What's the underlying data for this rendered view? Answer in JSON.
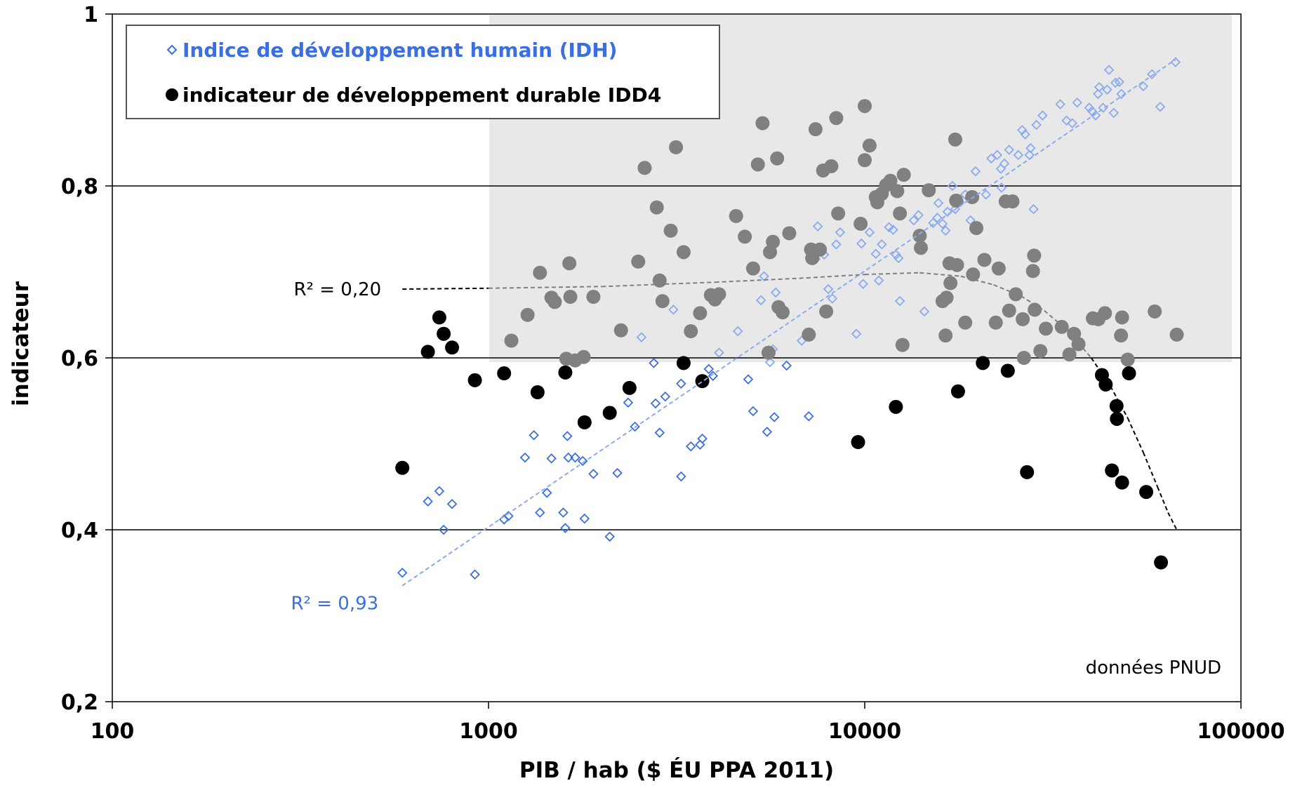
{
  "chart_data": {
    "type": "scatter",
    "xscale": "log",
    "xlim": [
      100,
      100000
    ],
    "ylim": [
      0.2,
      1.0
    ],
    "xticks": [
      "100",
      "1000",
      "10000",
      "100000"
    ],
    "yticks": [
      "0,2",
      "0,4",
      "0,6",
      "0,8",
      "1"
    ],
    "xlabel": "PIB / hab ($ ÉU PPA 2011)",
    "ylabel": "indicateur",
    "grid": "horizontal",
    "legend_position": "top-left",
    "highlight_region": {
      "x": [
        1000,
        100000
      ],
      "y": [
        0.595,
        1.0
      ],
      "color": "#e8e8e8"
    },
    "source_note": "données PNUD",
    "colors": {
      "hdi": "#3b6fe0",
      "hdi_light": "#8aaaf0",
      "sdi": "#000000",
      "sdi_shaded": "#808080"
    },
    "series": [
      {
        "name": "Indice de développement humain (IDH)",
        "marker": "diamond-open",
        "color": "#3b6fe0",
        "points": [
          [
            590,
            0.35
          ],
          [
            690,
            0.433
          ],
          [
            740,
            0.445
          ],
          [
            760,
            0.4
          ],
          [
            800,
            0.43
          ],
          [
            920,
            0.348
          ],
          [
            1100,
            0.412
          ],
          [
            1130,
            0.416
          ],
          [
            1250,
            0.484
          ],
          [
            1320,
            0.51
          ],
          [
            1370,
            0.42
          ],
          [
            1430,
            0.443
          ],
          [
            1470,
            0.483
          ],
          [
            1580,
            0.42
          ],
          [
            1600,
            0.402
          ],
          [
            1620,
            0.509
          ],
          [
            1630,
            0.484
          ],
          [
            1700,
            0.484
          ],
          [
            1780,
            0.48
          ],
          [
            1800,
            0.413
          ],
          [
            1900,
            0.465
          ],
          [
            2100,
            0.392
          ],
          [
            2200,
            0.466
          ],
          [
            2350,
            0.548
          ],
          [
            2450,
            0.52
          ],
          [
            2550,
            0.624
          ],
          [
            2750,
            0.594
          ],
          [
            2780,
            0.547
          ],
          [
            2850,
            0.513
          ],
          [
            2950,
            0.555
          ],
          [
            3100,
            0.656
          ],
          [
            3250,
            0.57
          ],
          [
            3250,
            0.462
          ],
          [
            3450,
            0.497
          ],
          [
            3650,
            0.499
          ],
          [
            3700,
            0.506
          ],
          [
            3850,
            0.587
          ],
          [
            3950,
            0.579
          ],
          [
            4100,
            0.606
          ],
          [
            4600,
            0.631
          ],
          [
            4900,
            0.575
          ],
          [
            5050,
            0.538
          ],
          [
            5300,
            0.667
          ],
          [
            5400,
            0.695
          ],
          [
            5500,
            0.514
          ],
          [
            5600,
            0.595
          ],
          [
            5700,
            0.61
          ],
          [
            5750,
            0.531
          ],
          [
            5800,
            0.676
          ],
          [
            5950,
            0.661
          ],
          [
            6200,
            0.591
          ],
          [
            6800,
            0.62
          ],
          [
            7100,
            0.532
          ],
          [
            7400,
            0.715
          ],
          [
            7500,
            0.753
          ],
          [
            7800,
            0.72
          ],
          [
            8000,
            0.68
          ],
          [
            8200,
            0.669
          ],
          [
            8400,
            0.732
          ],
          [
            8600,
            0.746
          ],
          [
            9500,
            0.628
          ],
          [
            9800,
            0.733
          ],
          [
            9900,
            0.686
          ],
          [
            10300,
            0.746
          ],
          [
            10700,
            0.721
          ],
          [
            10900,
            0.69
          ],
          [
            11100,
            0.732
          ],
          [
            11600,
            0.752
          ],
          [
            11900,
            0.749
          ],
          [
            12100,
            0.72
          ],
          [
            12300,
            0.716
          ],
          [
            12400,
            0.666
          ],
          [
            13500,
            0.76
          ],
          [
            13900,
            0.766
          ],
          [
            14400,
            0.654
          ],
          [
            15200,
            0.757
          ],
          [
            15600,
            0.763
          ],
          [
            15700,
            0.78
          ],
          [
            16100,
            0.756
          ],
          [
            16400,
            0.748
          ],
          [
            16600,
            0.77
          ],
          [
            17100,
            0.8
          ],
          [
            17400,
            0.773
          ],
          [
            17900,
            0.781
          ],
          [
            18500,
            0.79
          ],
          [
            19100,
            0.76
          ],
          [
            19700,
            0.817
          ],
          [
            21000,
            0.79
          ],
          [
            21700,
            0.832
          ],
          [
            22500,
            0.836
          ],
          [
            23000,
            0.82
          ],
          [
            23100,
            0.798
          ],
          [
            23500,
            0.826
          ],
          [
            24200,
            0.842
          ],
          [
            25600,
            0.836
          ],
          [
            26200,
            0.865
          ],
          [
            26700,
            0.86
          ],
          [
            27400,
            0.836
          ],
          [
            27600,
            0.844
          ],
          [
            28100,
            0.773
          ],
          [
            28600,
            0.871
          ],
          [
            29700,
            0.882
          ],
          [
            33100,
            0.895
          ],
          [
            34400,
            0.876
          ],
          [
            35600,
            0.873
          ],
          [
            36700,
            0.897
          ],
          [
            39500,
            0.891
          ],
          [
            40200,
            0.887
          ],
          [
            41100,
            0.882
          ],
          [
            41700,
            0.907
          ],
          [
            42000,
            0.915
          ],
          [
            43000,
            0.891
          ],
          [
            44100,
            0.912
          ],
          [
            44600,
            0.935
          ],
          [
            45900,
            0.885
          ],
          [
            46400,
            0.92
          ],
          [
            47500,
            0.921
          ],
          [
            48100,
            0.907
          ],
          [
            55000,
            0.916
          ],
          [
            58000,
            0.93
          ],
          [
            61000,
            0.892
          ],
          [
            67000,
            0.944
          ]
        ]
      },
      {
        "name": "indicateur de développement durable IDD4",
        "marker": "circle-filled",
        "color": "#000000",
        "points": [
          [
            590,
            0.472
          ],
          [
            690,
            0.607
          ],
          [
            740,
            0.647
          ],
          [
            760,
            0.628
          ],
          [
            800,
            0.612
          ],
          [
            920,
            0.574
          ],
          [
            1100,
            0.582
          ],
          [
            1150,
            0.62
          ],
          [
            1270,
            0.65
          ],
          [
            1350,
            0.56
          ],
          [
            1370,
            0.699
          ],
          [
            1470,
            0.67
          ],
          [
            1500,
            0.665
          ],
          [
            1600,
            0.583
          ],
          [
            1610,
            0.599
          ],
          [
            1640,
            0.71
          ],
          [
            1650,
            0.671
          ],
          [
            1700,
            0.597
          ],
          [
            1790,
            0.601
          ],
          [
            1800,
            0.525
          ],
          [
            1900,
            0.671
          ],
          [
            2100,
            0.536
          ],
          [
            2250,
            0.632
          ],
          [
            2370,
            0.565
          ],
          [
            2500,
            0.712
          ],
          [
            2600,
            0.821
          ],
          [
            2800,
            0.775
          ],
          [
            2850,
            0.69
          ],
          [
            2900,
            0.666
          ],
          [
            3050,
            0.748
          ],
          [
            3150,
            0.845
          ],
          [
            3300,
            0.594
          ],
          [
            3300,
            0.723
          ],
          [
            3450,
            0.631
          ],
          [
            3650,
            0.652
          ],
          [
            3700,
            0.573
          ],
          [
            3900,
            0.673
          ],
          [
            4000,
            0.668
          ],
          [
            4100,
            0.674
          ],
          [
            4550,
            0.765
          ],
          [
            4800,
            0.741
          ],
          [
            5050,
            0.704
          ],
          [
            5200,
            0.825
          ],
          [
            5350,
            0.873
          ],
          [
            5550,
            0.606
          ],
          [
            5600,
            0.723
          ],
          [
            5700,
            0.735
          ],
          [
            5850,
            0.832
          ],
          [
            5900,
            0.659
          ],
          [
            6050,
            0.653
          ],
          [
            6300,
            0.745
          ],
          [
            7100,
            0.627
          ],
          [
            7200,
            0.726
          ],
          [
            7250,
            0.716
          ],
          [
            7400,
            0.866
          ],
          [
            7600,
            0.726
          ],
          [
            7750,
            0.818
          ],
          [
            7900,
            0.654
          ],
          [
            8150,
            0.823
          ],
          [
            8400,
            0.879
          ],
          [
            8500,
            0.768
          ],
          [
            9600,
            0.502
          ],
          [
            9750,
            0.756
          ],
          [
            10000,
            0.893
          ],
          [
            10000,
            0.83
          ],
          [
            10300,
            0.847
          ],
          [
            10700,
            0.787
          ],
          [
            10800,
            0.781
          ],
          [
            11100,
            0.791
          ],
          [
            11400,
            0.801
          ],
          [
            11700,
            0.806
          ],
          [
            12100,
            0.543
          ],
          [
            12200,
            0.794
          ],
          [
            12400,
            0.768
          ],
          [
            12600,
            0.615
          ],
          [
            12700,
            0.813
          ],
          [
            14000,
            0.742
          ],
          [
            14100,
            0.728
          ],
          [
            14800,
            0.795
          ],
          [
            16100,
            0.666
          ],
          [
            16400,
            0.626
          ],
          [
            16500,
            0.67
          ],
          [
            16800,
            0.71
          ],
          [
            16900,
            0.687
          ],
          [
            17400,
            0.854
          ],
          [
            17500,
            0.783
          ],
          [
            17600,
            0.708
          ],
          [
            17700,
            0.561
          ],
          [
            18500,
            0.641
          ],
          [
            19300,
            0.787
          ],
          [
            19400,
            0.697
          ],
          [
            19800,
            0.751
          ],
          [
            20600,
            0.594
          ],
          [
            20800,
            0.714
          ],
          [
            22300,
            0.641
          ],
          [
            22700,
            0.704
          ],
          [
            23700,
            0.782
          ],
          [
            24000,
            0.585
          ],
          [
            24200,
            0.655
          ],
          [
            24700,
            0.782
          ],
          [
            25200,
            0.674
          ],
          [
            26300,
            0.645
          ],
          [
            26500,
            0.6
          ],
          [
            27000,
            0.467
          ],
          [
            28000,
            0.701
          ],
          [
            28200,
            0.719
          ],
          [
            28300,
            0.656
          ],
          [
            29300,
            0.608
          ],
          [
            30300,
            0.634
          ],
          [
            33400,
            0.636
          ],
          [
            35000,
            0.604
          ],
          [
            36000,
            0.628
          ],
          [
            37000,
            0.616
          ],
          [
            40400,
            0.646
          ],
          [
            41800,
            0.645
          ],
          [
            42700,
            0.58
          ],
          [
            43500,
            0.652
          ],
          [
            43700,
            0.569
          ],
          [
            45400,
            0.469
          ],
          [
            46700,
            0.544
          ],
          [
            46800,
            0.529
          ],
          [
            48000,
            0.626
          ],
          [
            48300,
            0.455
          ],
          [
            48300,
            0.647
          ],
          [
            50000,
            0.598
          ],
          [
            50400,
            0.582
          ],
          [
            56000,
            0.444
          ],
          [
            59000,
            0.654
          ],
          [
            61300,
            0.362
          ],
          [
            67500,
            0.627
          ]
        ]
      }
    ],
    "trendlines": [
      {
        "label": "R² = 0,93",
        "color": "#3b6fe0",
        "type": "log-linear",
        "points": [
          [
            590,
            0.335
          ],
          [
            67000,
            0.947
          ]
        ]
      },
      {
        "label": "R² = 0,20",
        "color": "#000000",
        "color_shaded": "#808080",
        "type": "polynomial",
        "points": [
          [
            590,
            0.68
          ],
          [
            1000,
            0.681
          ],
          [
            2000,
            0.683
          ],
          [
            4000,
            0.688
          ],
          [
            7000,
            0.693
          ],
          [
            10000,
            0.697
          ],
          [
            14000,
            0.699
          ],
          [
            18000,
            0.695
          ],
          [
            22000,
            0.685
          ],
          [
            26000,
            0.672
          ],
          [
            30000,
            0.655
          ],
          [
            35000,
            0.63
          ],
          [
            40000,
            0.6
          ],
          [
            45000,
            0.567
          ],
          [
            50000,
            0.53
          ],
          [
            55000,
            0.49
          ],
          [
            60000,
            0.45
          ],
          [
            64000,
            0.42
          ],
          [
            67500,
            0.4
          ]
        ]
      }
    ]
  }
}
